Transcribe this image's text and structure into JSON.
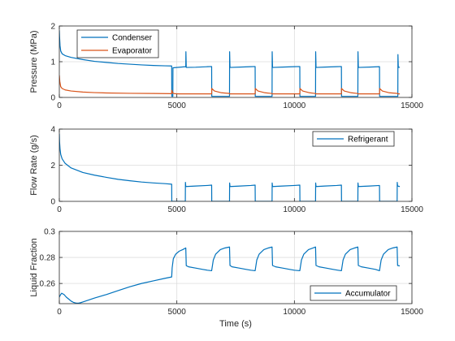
{
  "colors": {
    "blue": "#0072BD",
    "orange": "#D95319",
    "grid": "#dcdcdc",
    "axis": "#262626",
    "background": "#ffffff"
  },
  "chart_data": [
    {
      "type": "line",
      "ylabel": "Pressure (MPa)",
      "xlabel": "",
      "xlim": [
        0,
        15000
      ],
      "ylim": [
        0,
        2
      ],
      "xticks": [
        0,
        5000,
        10000,
        15000
      ],
      "yticks": [
        0,
        1,
        2
      ],
      "xtick_labels": [
        "0",
        "5000",
        "10000",
        "15000"
      ],
      "ytick_labels": [
        "0",
        "1",
        "2"
      ],
      "grid": true,
      "legend_position": "top-left",
      "series": [
        {
          "name": "Condenser",
          "color": "#0072BD",
          "x": [
            0,
            10,
            30,
            60,
            120,
            250,
            500,
            1000,
            1500,
            2000,
            2500,
            3000,
            3500,
            4000,
            4500,
            4780,
            4785,
            4830,
            4835,
            5380,
            5385,
            5400,
            5800,
            6300,
            6480,
            6485,
            7240,
            7245,
            7260,
            7700,
            8150,
            8330,
            8335,
            9050,
            9055,
            9070,
            9500,
            10000,
            10230,
            10235,
            10900,
            10905,
            10920,
            11300,
            11800,
            12000,
            12005,
            12700,
            12705,
            12720,
            13200,
            13620,
            13625,
            14400,
            14405,
            14420,
            14480,
            14485
          ],
          "y": [
            1.88,
            1.7,
            1.45,
            1.3,
            1.22,
            1.17,
            1.12,
            1.06,
            1.01,
            0.98,
            0.95,
            0.93,
            0.91,
            0.895,
            0.885,
            0.88,
            0.03,
            0.03,
            0.83,
            0.86,
            1.28,
            0.84,
            0.845,
            0.86,
            0.865,
            0.03,
            0.03,
            1.28,
            0.84,
            0.85,
            0.86,
            0.865,
            0.03,
            0.03,
            1.28,
            0.84,
            0.85,
            0.86,
            0.865,
            0.03,
            0.03,
            1.28,
            0.84,
            0.85,
            0.86,
            0.865,
            0.03,
            0.03,
            1.28,
            0.84,
            0.85,
            0.86,
            0.03,
            0.03,
            1.2,
            0.84,
            0.845,
            0.845
          ]
        },
        {
          "name": "Evaporator",
          "color": "#D95319",
          "x": [
            0,
            20,
            60,
            120,
            250,
            500,
            1000,
            1500,
            2000,
            3000,
            4000,
            4780,
            4785,
            4835,
            4900,
            5100,
            5380,
            5385,
            6480,
            6485,
            6600,
            6900,
            7240,
            7245,
            8330,
            8335,
            8450,
            8750,
            9050,
            9055,
            10230,
            10235,
            10350,
            10650,
            10900,
            10905,
            12000,
            12005,
            12120,
            12420,
            12700,
            12705,
            13620,
            13625,
            13740,
            14040,
            14400,
            14405,
            14485
          ],
          "y": [
            0.62,
            0.45,
            0.3,
            0.25,
            0.21,
            0.18,
            0.15,
            0.135,
            0.125,
            0.115,
            0.11,
            0.105,
            0.2,
            0.12,
            0.105,
            0.1,
            0.1,
            0.1,
            0.1,
            0.25,
            0.18,
            0.13,
            0.11,
            0.1,
            0.1,
            0.25,
            0.18,
            0.13,
            0.11,
            0.1,
            0.1,
            0.25,
            0.18,
            0.13,
            0.11,
            0.1,
            0.1,
            0.25,
            0.18,
            0.13,
            0.11,
            0.1,
            0.1,
            0.25,
            0.18,
            0.13,
            0.11,
            0.1,
            0.1
          ]
        }
      ]
    },
    {
      "type": "line",
      "ylabel": "Flow Rate (g/s)",
      "xlabel": "",
      "xlim": [
        0,
        15000
      ],
      "ylim": [
        0,
        4
      ],
      "xticks": [
        0,
        5000,
        10000,
        15000
      ],
      "yticks": [
        0,
        2,
        4
      ],
      "xtick_labels": [
        "0",
        "5000",
        "10000",
        "15000"
      ],
      "ytick_labels": [
        "0",
        "2",
        "4"
      ],
      "grid": true,
      "legend_position": "top-right",
      "series": [
        {
          "name": "Refrigerant",
          "color": "#0072BD",
          "x": [
            0,
            10,
            30,
            60,
            120,
            250,
            500,
            1000,
            1500,
            2000,
            2500,
            3000,
            3500,
            4000,
            4500,
            4780,
            4785,
            5360,
            5365,
            5380,
            5800,
            6300,
            6480,
            6485,
            7240,
            7245,
            7260,
            7700,
            8150,
            8330,
            8335,
            9050,
            9055,
            9070,
            9500,
            10000,
            10230,
            10235,
            10900,
            10905,
            10920,
            11300,
            11800,
            12000,
            12005,
            12700,
            12705,
            12720,
            13200,
            13620,
            13625,
            14370,
            14375,
            14390,
            14480,
            14485
          ],
          "y": [
            3.75,
            3.3,
            2.9,
            2.6,
            2.35,
            2.1,
            1.85,
            1.6,
            1.45,
            1.33,
            1.22,
            1.14,
            1.07,
            1.02,
            0.98,
            0.95,
            0.0,
            0.0,
            1.05,
            0.82,
            0.85,
            0.88,
            0.9,
            0.0,
            0.0,
            1.02,
            0.82,
            0.85,
            0.88,
            0.9,
            0.0,
            0.0,
            1.02,
            0.82,
            0.85,
            0.88,
            0.9,
            0.0,
            0.0,
            1.02,
            0.82,
            0.85,
            0.88,
            0.9,
            0.0,
            0.0,
            1.02,
            0.82,
            0.85,
            0.88,
            0.0,
            0.0,
            1.05,
            0.85,
            0.82,
            0.82
          ]
        }
      ]
    },
    {
      "type": "line",
      "ylabel": "Liquid Fraction",
      "xlabel": "Time (s)",
      "xlim": [
        0,
        15000
      ],
      "ylim": [
        0.2445,
        0.3
      ],
      "xticks": [
        0,
        5000,
        10000,
        15000
      ],
      "yticks": [
        0.26,
        0.28,
        0.3
      ],
      "xtick_labels": [
        "0",
        "5000",
        "10000",
        "15000"
      ],
      "ytick_labels": [
        "0.26",
        "0.28",
        "0.3"
      ],
      "grid": true,
      "legend_position": "bottom-right",
      "series": [
        {
          "name": "Accumulator",
          "color": "#0072BD",
          "x": [
            0,
            40,
            100,
            200,
            300,
            400,
            500,
            600,
            700,
            800,
            900,
            1000,
            1500,
            2000,
            2500,
            3000,
            3500,
            4000,
            4500,
            4780,
            4800,
            4850,
            4950,
            5100,
            5250,
            5380,
            5400,
            5500,
            5800,
            6100,
            6300,
            6480,
            6550,
            6650,
            6850,
            7050,
            7240,
            7260,
            7350,
            7650,
            7950,
            8150,
            8330,
            8400,
            8500,
            8700,
            8900,
            9050,
            9070,
            9200,
            9500,
            9800,
            10000,
            10230,
            10300,
            10400,
            10600,
            10800,
            10900,
            10920,
            11050,
            11350,
            11650,
            11850,
            12000,
            12070,
            12170,
            12370,
            12570,
            12700,
            12720,
            12850,
            13150,
            13450,
            13620,
            13690,
            13790,
            13990,
            14190,
            14370,
            14390,
            14480
          ],
          "y": [
            0.2495,
            0.251,
            0.2525,
            0.2515,
            0.2495,
            0.248,
            0.2465,
            0.2455,
            0.245,
            0.2448,
            0.2452,
            0.2458,
            0.2488,
            0.2515,
            0.2545,
            0.2575,
            0.26,
            0.262,
            0.264,
            0.265,
            0.272,
            0.279,
            0.2825,
            0.2848,
            0.286,
            0.2873,
            0.2737,
            0.2728,
            0.2718,
            0.2708,
            0.2702,
            0.2698,
            0.278,
            0.2825,
            0.286,
            0.2873,
            0.288,
            0.2738,
            0.2728,
            0.2718,
            0.2708,
            0.2702,
            0.2698,
            0.278,
            0.2825,
            0.286,
            0.2873,
            0.288,
            0.2738,
            0.2728,
            0.2718,
            0.2708,
            0.2702,
            0.2698,
            0.278,
            0.2825,
            0.286,
            0.2873,
            0.288,
            0.2738,
            0.2728,
            0.2718,
            0.2708,
            0.2702,
            0.2698,
            0.278,
            0.2825,
            0.286,
            0.2873,
            0.288,
            0.2738,
            0.2728,
            0.2718,
            0.2708,
            0.2698,
            0.278,
            0.2825,
            0.286,
            0.2873,
            0.288,
            0.2738,
            0.2735
          ]
        }
      ]
    }
  ]
}
